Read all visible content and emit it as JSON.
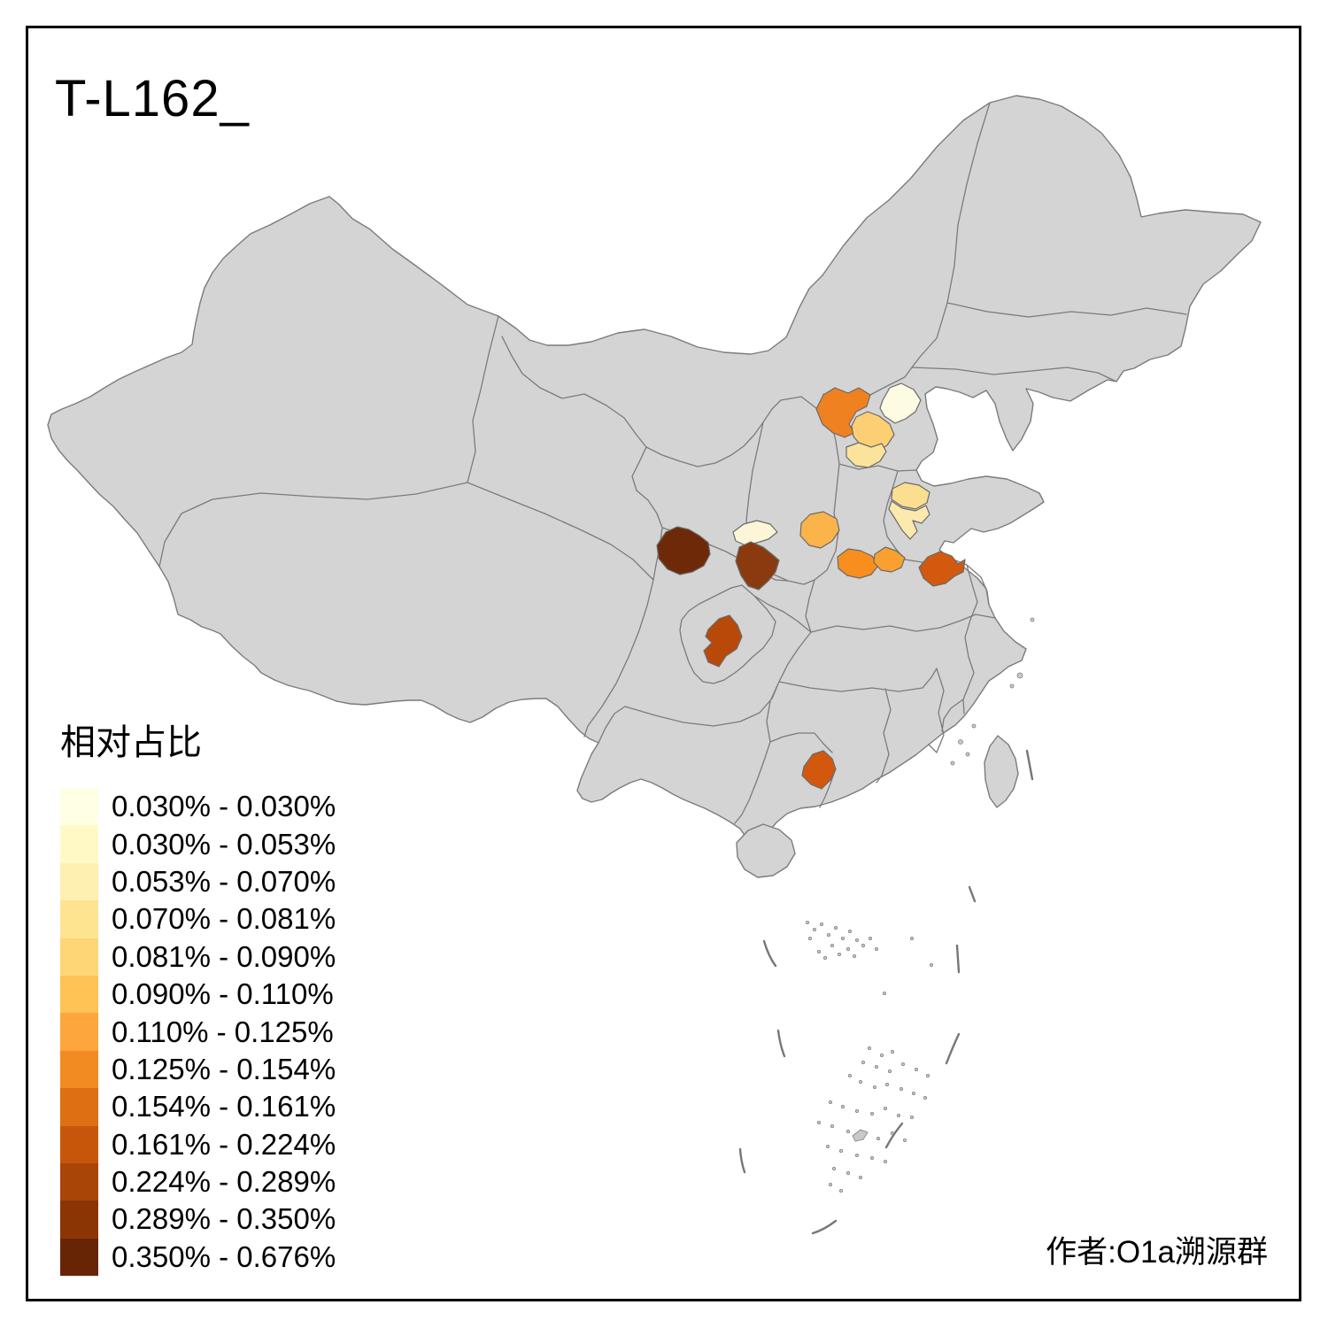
{
  "title": "T-L162_",
  "attribution": "作者:O1a溯源群",
  "legend": {
    "title": "相对占比",
    "items": [
      {
        "label": "0.030% - 0.030%",
        "color": "#FFFFE5"
      },
      {
        "label": "0.030% - 0.053%",
        "color": "#FFF9C5"
      },
      {
        "label": "0.053% - 0.070%",
        "color": "#FEF0B1"
      },
      {
        "label": "0.070% - 0.081%",
        "color": "#FEE391"
      },
      {
        "label": "0.081% - 0.090%",
        "color": "#FED675"
      },
      {
        "label": "0.090% - 0.110%",
        "color": "#FEC354"
      },
      {
        "label": "0.110% - 0.125%",
        "color": "#FDA63D"
      },
      {
        "label": "0.125% - 0.154%",
        "color": "#F18B22"
      },
      {
        "label": "0.154% - 0.161%",
        "color": "#DE6F12"
      },
      {
        "label": "0.161% - 0.224%",
        "color": "#C8560A"
      },
      {
        "label": "0.224% - 0.289%",
        "color": "#AA4508"
      },
      {
        "label": "0.289% - 0.350%",
        "color": "#8C3504"
      },
      {
        "label": "0.350% - 0.676%",
        "color": "#682506"
      }
    ]
  },
  "map_colors": {
    "land": "#d4d4d4",
    "border": "#7b7b7b",
    "background": "#ffffff",
    "frame": "#000000"
  },
  "regions": [
    {
      "color": "#EF8120"
    },
    {
      "color": "#FDFBE1"
    },
    {
      "color": "#FCCF74"
    },
    {
      "color": "#FBE39B"
    },
    {
      "color": "#FBDE90"
    },
    {
      "color": "#FCE9AD"
    },
    {
      "color": "#FBB34A"
    },
    {
      "color": "#FDF5D7"
    },
    {
      "color": "#6E2A08"
    },
    {
      "color": "#8B3A10"
    },
    {
      "color": "#F78E1D"
    },
    {
      "color": "#F9A02E"
    },
    {
      "color": "#D2590E"
    },
    {
      "color": "#B94909"
    },
    {
      "color": "#D4570E"
    }
  ],
  "chart_data": {
    "type": "heatmap",
    "title": "T-L162_",
    "legend_title": "相对占比",
    "legend_position": "bottom-left",
    "bins": [
      {
        "range": "0.030% - 0.030%",
        "color": "#FFFFE5"
      },
      {
        "range": "0.030% - 0.053%",
        "color": "#FFF9C5"
      },
      {
        "range": "0.053% - 0.070%",
        "color": "#FEF0B1"
      },
      {
        "range": "0.070% - 0.081%",
        "color": "#FEE391"
      },
      {
        "range": "0.081% - 0.090%",
        "color": "#FED675"
      },
      {
        "range": "0.090% - 0.110%",
        "color": "#FEC354"
      },
      {
        "range": "0.110% - 0.125%",
        "color": "#FDA63D"
      },
      {
        "range": "0.125% - 0.154%",
        "color": "#F18B22"
      },
      {
        "range": "0.154% - 0.161%",
        "color": "#DE6F12"
      },
      {
        "range": "0.161% - 0.224%",
        "color": "#C8560A"
      },
      {
        "range": "0.224% - 0.289%",
        "color": "#AA4508"
      },
      {
        "range": "0.289% - 0.350%",
        "color": "#8C3504"
      },
      {
        "range": "0.350% - 0.676%",
        "color": "#682506"
      }
    ],
    "highlighted_region_colors": [
      "#EF8120",
      "#FDFBE1",
      "#FCCF74",
      "#FBE39B",
      "#FBDE90",
      "#FCE9AD",
      "#FBB34A",
      "#FDF5D7",
      "#6E2A08",
      "#8B3A10",
      "#F78E1D",
      "#F9A02E",
      "#D2590E",
      "#B94909",
      "#D4570E"
    ]
  }
}
